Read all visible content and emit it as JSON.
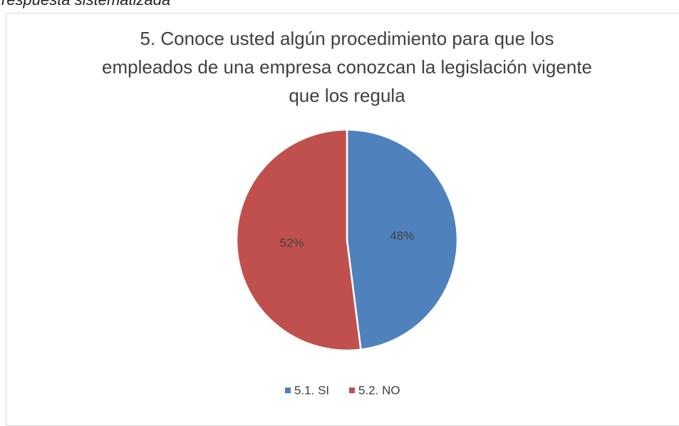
{
  "caption": "respuesta sistematizada",
  "chart_data": {
    "type": "pie",
    "title": "5. Conoce usted algún procedimiento para que los empleados de una empresa conozcan la legislación vigente que los regula",
    "categories": [
      "5.1. SI",
      "5.2. NO"
    ],
    "values": [
      48,
      52
    ],
    "value_labels": [
      "48%",
      "52%"
    ],
    "colors": [
      "#4f81bd",
      "#c0504d"
    ],
    "legend": "bottom"
  }
}
